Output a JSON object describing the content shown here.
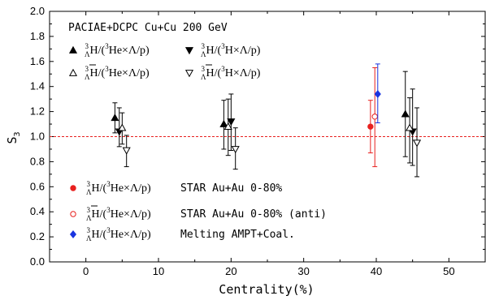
{
  "chart_data": {
    "type": "scatter",
    "header": "PACIAE+DCPC   Cu+Cu 200 GeV",
    "xlabel": "Centrality(%)",
    "ylabel": "S",
    "ylabel_sub": "3",
    "xlim": [
      -5,
      55
    ],
    "ylim": [
      0,
      2
    ],
    "xticks": [
      0,
      10,
      20,
      30,
      40,
      50
    ],
    "yticks": [
      0.0,
      0.2,
      0.4,
      0.6,
      0.8,
      1.0,
      1.2,
      1.4,
      1.6,
      1.8,
      2.0
    ],
    "reference_line": {
      "y": 1.0,
      "color": "#e8201e"
    },
    "series": [
      {
        "name": "ΛH³/(³He×Λ/p)",
        "marker": "triangle-up",
        "filled": true,
        "color": "#000000",
        "points": [
          {
            "x": 4.0,
            "y": 1.15,
            "lo": 1.03,
            "hi": 1.27
          },
          {
            "x": 19.0,
            "y": 1.1,
            "lo": 0.9,
            "hi": 1.29
          },
          {
            "x": 44.0,
            "y": 1.18,
            "lo": 0.84,
            "hi": 1.52
          }
        ]
      },
      {
        "name": "ΛH³/(³H×Λ/p)",
        "marker": "triangle-down",
        "filled": true,
        "color": "#000000",
        "points": [
          {
            "x": 4.6,
            "y": 1.04,
            "lo": 0.92,
            "hi": 1.23
          },
          {
            "x": 20.0,
            "y": 1.12,
            "lo": 0.89,
            "hi": 1.34
          },
          {
            "x": 45.0,
            "y": 1.04,
            "lo": 0.77,
            "hi": 1.38
          }
        ]
      },
      {
        "name": "anti-ΛH³/(³He×Λ/p) anti",
        "marker": "triangle-up",
        "filled": false,
        "color": "#000000",
        "points": [
          {
            "x": 5.0,
            "y": 1.07,
            "lo": 0.94,
            "hi": 1.19
          },
          {
            "x": 19.6,
            "y": 1.08,
            "lo": 0.85,
            "hi": 1.3
          },
          {
            "x": 44.6,
            "y": 1.07,
            "lo": 0.79,
            "hi": 1.31
          }
        ]
      },
      {
        "name": "anti-ΛH³/(³H×Λ/p) anti",
        "marker": "triangle-down",
        "filled": false,
        "color": "#000000",
        "points": [
          {
            "x": 5.6,
            "y": 0.89,
            "lo": 0.76,
            "hi": 1.01
          },
          {
            "x": 20.6,
            "y": 0.9,
            "lo": 0.74,
            "hi": 1.07
          },
          {
            "x": 45.6,
            "y": 0.95,
            "lo": 0.68,
            "hi": 1.23
          }
        ]
      },
      {
        "name": "STAR Au+Au 0-80%",
        "marker": "circle",
        "filled": true,
        "color": "#e8201e",
        "points": [
          {
            "x": 39.2,
            "y": 1.08,
            "lo": 0.87,
            "hi": 1.29
          }
        ]
      },
      {
        "name": "STAR Au+Au 0-80% (anti)",
        "marker": "circle",
        "filled": false,
        "color": "#e8201e",
        "points": [
          {
            "x": 39.8,
            "y": 1.16,
            "lo": 0.76,
            "hi": 1.55
          }
        ]
      },
      {
        "name": "Melting AMPT+Coal.",
        "marker": "diamond",
        "filled": true,
        "color": "#1a35e0",
        "points": [
          {
            "x": 40.2,
            "y": 1.34,
            "lo": 1.11,
            "hi": 1.58
          }
        ]
      }
    ],
    "top_legend": {
      "row1_left": "ΛH³/(³He×Λ/p)",
      "row1_right": "ΛH³/(³H×Λ/p)",
      "row2_left": "ΛH³/(³He×Λ/p)",
      "row2_right": "ΛH³/(³H×Λ/p)"
    },
    "bottom_legend": [
      {
        "formula_main": "H/(",
        "formula_he": "He×Λ/p)",
        "label": "STAR Au+Au 0-80%"
      },
      {
        "formula_main": "H/(",
        "formula_he": "He×Λ/p)",
        "label": "STAR Au+Au 0-80%"
      },
      {
        "formula_main": "H/(",
        "formula_he": "He×Λ/p)",
        "label": "Melting AMPT+Coal."
      }
    ]
  }
}
